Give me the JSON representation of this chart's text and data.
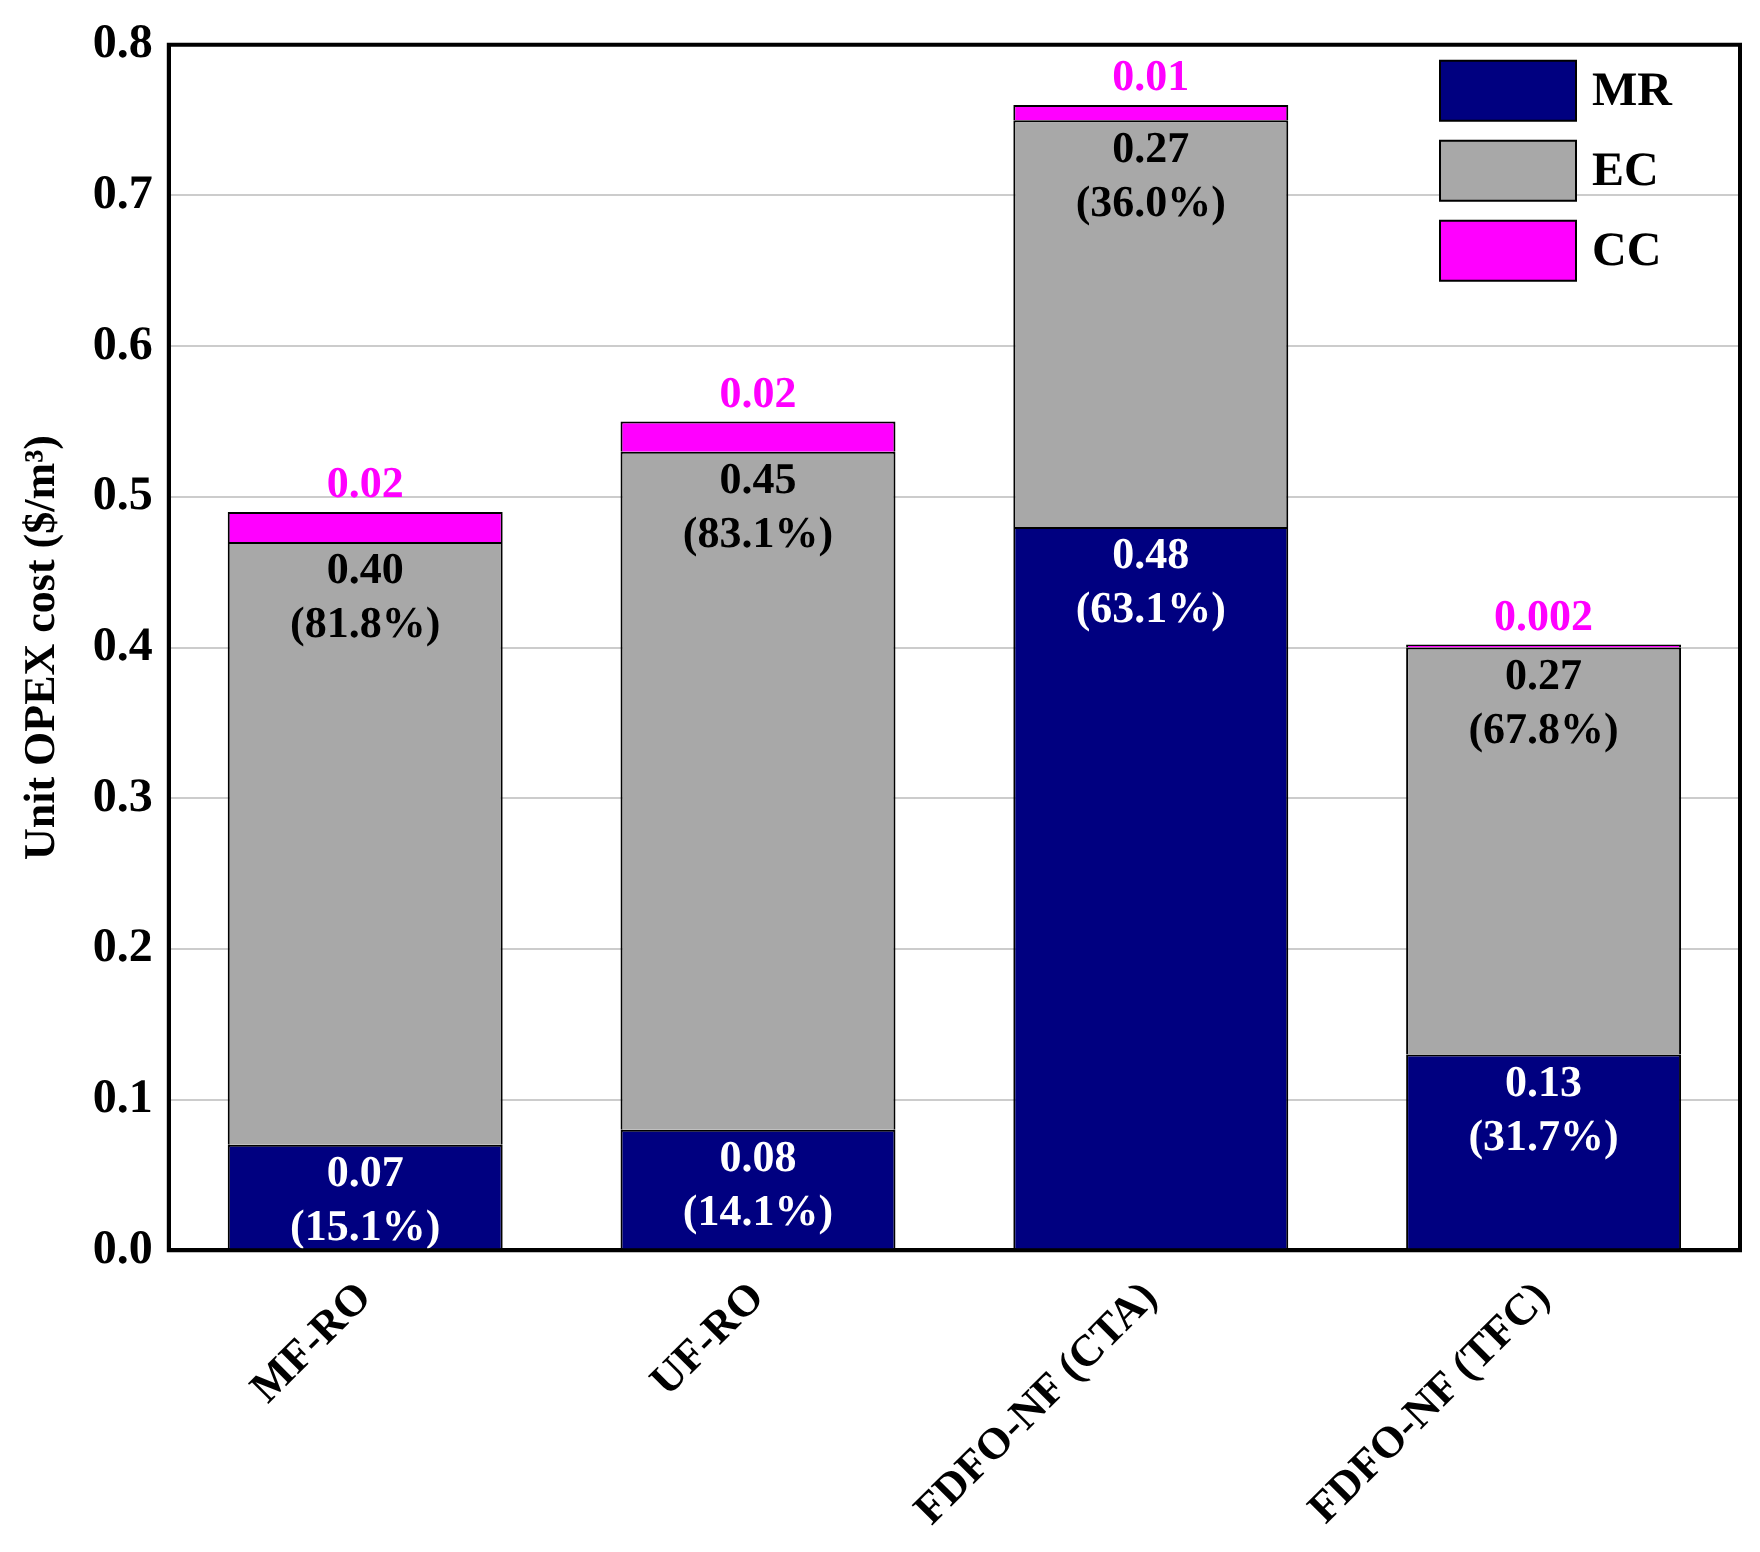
{
  "chart_data": {
    "type": "bar",
    "stacked": true,
    "ylabel": "Unit OPEX cost ($/m³)",
    "categories": [
      "MF-RO",
      "UF-RO",
      "FDFO-NF (CTA)",
      "FDFO-NF (TFC)"
    ],
    "series": [
      {
        "name": "MR",
        "color": "#000080",
        "values": [
          0.07,
          0.08,
          0.48,
          0.13
        ],
        "value_labels": [
          "0.07 (15.1%)",
          "0.08 (14.1%)",
          "0.48 (63.1%)",
          "0.13 (31.7%)"
        ]
      },
      {
        "name": "EC",
        "color": "#a8a8a8",
        "values": [
          0.4,
          0.45,
          0.27,
          0.27
        ],
        "value_labels": [
          "0.40 (81.8%)",
          "0.45 (83.1%)",
          "0.27 (36.0%)",
          "0.27 (67.8%)"
        ]
      },
      {
        "name": "CC",
        "color": "#ff00ff",
        "values": [
          0.02,
          0.02,
          0.01,
          0.002
        ],
        "value_labels": [
          "0.02",
          "0.02",
          "0.01",
          "0.002"
        ]
      }
    ],
    "ylim": [
      0,
      0.8
    ],
    "yticks": [
      {
        "value": 0,
        "label": "0.0"
      },
      0.1,
      0.2,
      0.3,
      0.4,
      0.5,
      0.6,
      0.7,
      0.8
    ],
    "grid": "y",
    "legend": "top right"
  }
}
